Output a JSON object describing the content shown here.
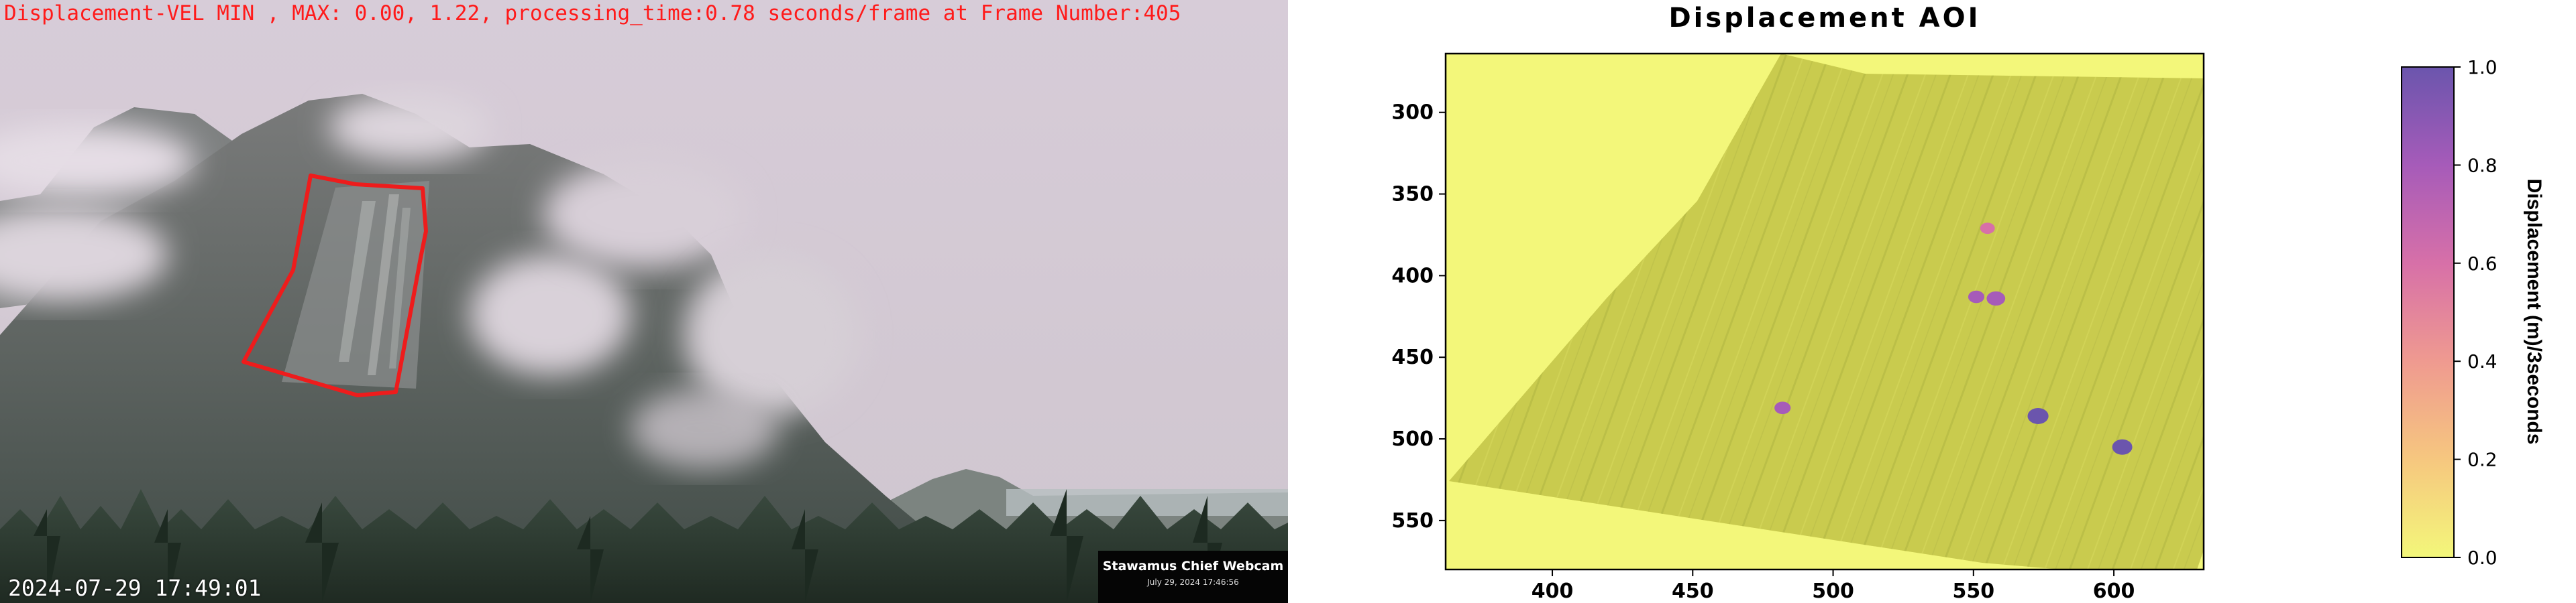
{
  "webcam": {
    "status_line": "Displacement-VEL MIN , MAX: 0.00, 1.22, processing_time:0.78 seconds/frame at Frame Number:405",
    "timestamp": "2024-07-29 17:49:01",
    "camera_label": "Stawamus Chief Webcam",
    "camera_date": "July 29, 2024 17:46:56",
    "aoi_color": "#ee1c1c"
  },
  "chart_data": {
    "type": "heatmap",
    "title": "Displacement AOI",
    "xlabel": "",
    "ylabel": "",
    "xlim": [
      362,
      632
    ],
    "ylim": [
      580,
      264
    ],
    "x_ticks": [
      400,
      450,
      500,
      550,
      600
    ],
    "y_ticks": [
      300,
      350,
      400,
      450,
      500,
      550
    ],
    "colorbar": {
      "label": "Displacement (m)/3seconds",
      "min": 0.0,
      "max": 1.0,
      "ticks": [
        0.0,
        0.2,
        0.4,
        0.6,
        0.8,
        1.0
      ],
      "colors": [
        "#f3f77a",
        "#f6c77f",
        "#ef9a90",
        "#d770a8",
        "#a65bb9",
        "#6b55ad"
      ]
    },
    "background_value": 0.0,
    "hotspots": [
      {
        "x": 573,
        "y": 486,
        "value": 1.0
      },
      {
        "x": 603,
        "y": 505,
        "value": 0.95
      },
      {
        "x": 558,
        "y": 414,
        "value": 0.85
      },
      {
        "x": 551,
        "y": 413,
        "value": 0.7
      },
      {
        "x": 482,
        "y": 481,
        "value": 0.7
      },
      {
        "x": 555,
        "y": 371,
        "value": 0.6
      }
    ]
  }
}
